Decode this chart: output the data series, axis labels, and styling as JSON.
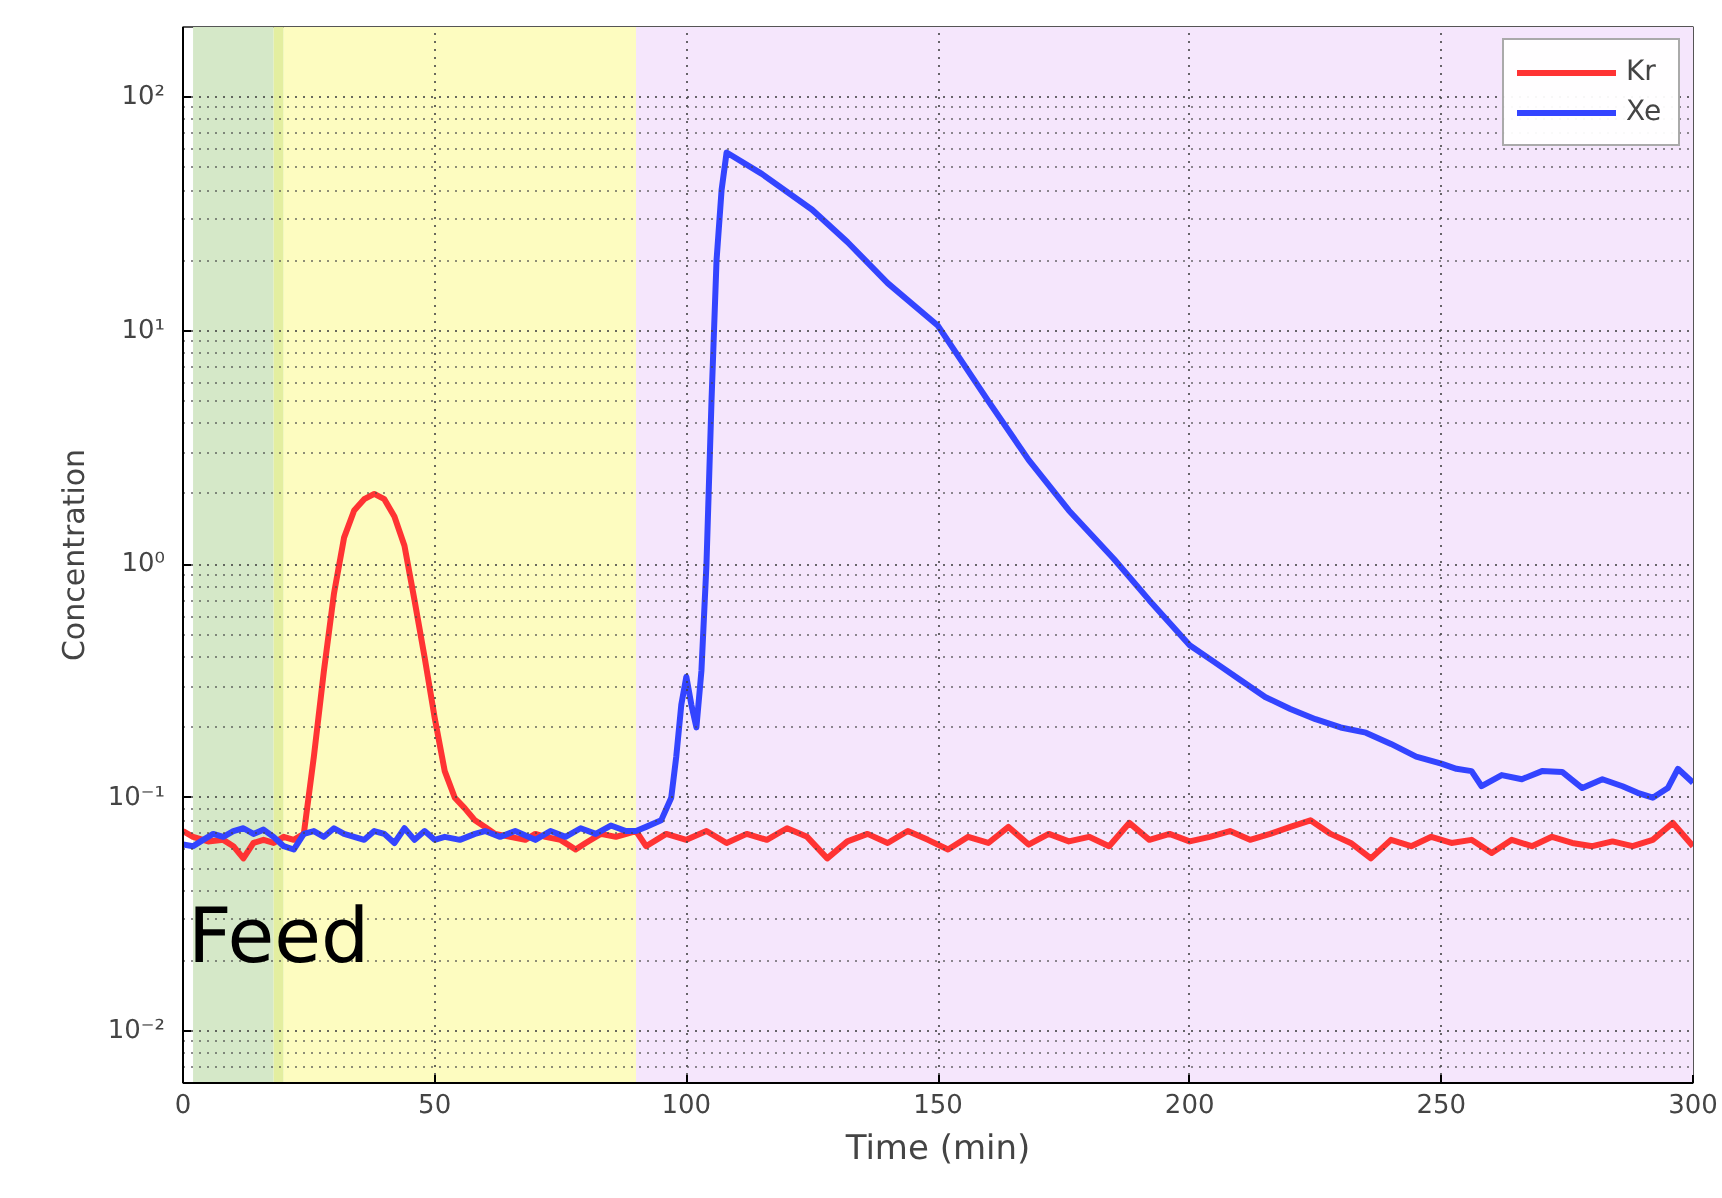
{
  "chart_data": {
    "type": "line",
    "xlabel": "Time (min)",
    "ylabel": "Concentration",
    "log": "y",
    "xlim": [
      0,
      300
    ],
    "xticks": [
      0,
      50,
      100,
      150,
      200,
      250,
      300
    ],
    "ylim": [
      0.006,
      200
    ],
    "yticks": [
      {
        "value": 0.01,
        "label": "10⁻²"
      },
      {
        "value": 0.1,
        "label": "10⁻¹"
      },
      {
        "value": 1,
        "label": "10⁰"
      },
      {
        "value": 10,
        "label": "10¹"
      },
      {
        "value": 100,
        "label": "10²"
      }
    ],
    "grid": true,
    "legend": "top right",
    "marker": "none",
    "line_style": "solid",
    "bands": [
      {
        "axis": "x",
        "from": 2,
        "to": 18,
        "label": null,
        "color": "#d5e8c8"
      },
      {
        "axis": "x",
        "from": 18,
        "to": 20,
        "label": null,
        "color": "#e3eea0"
      },
      {
        "axis": "x",
        "from": 20,
        "to": 90,
        "label": null,
        "color": "#fdfcc0"
      },
      {
        "axis": "x",
        "from": 90,
        "to": 300,
        "label": null,
        "color": "#f5e6fc"
      }
    ],
    "annotations": [
      "Feed"
    ],
    "series": [
      {
        "name": "Kr",
        "color": "#ff3333",
        "x": [
          0,
          2,
          5,
          8,
          10,
          12,
          14,
          16,
          18,
          20,
          22,
          24,
          26,
          28,
          30,
          32,
          34,
          36,
          38,
          40,
          42,
          44,
          46,
          48,
          50,
          52,
          54,
          56,
          58,
          60,
          62,
          65,
          68,
          70,
          72,
          75,
          78,
          80,
          83,
          86,
          90,
          92,
          96,
          100,
          104,
          108,
          112,
          116,
          120,
          124,
          128,
          132,
          136,
          140,
          144,
          148,
          152,
          156,
          160,
          164,
          168,
          172,
          176,
          180,
          184,
          188,
          192,
          196,
          200,
          204,
          208,
          212,
          216,
          220,
          224,
          228,
          232,
          236,
          240,
          244,
          248,
          252,
          256,
          260,
          264,
          268,
          272,
          276,
          280,
          284,
          288,
          292,
          296,
          300
        ],
        "values": [
          0.072,
          0.068,
          0.065,
          0.066,
          0.062,
          0.055,
          0.064,
          0.066,
          0.064,
          0.068,
          0.066,
          0.07,
          0.15,
          0.35,
          0.75,
          1.3,
          1.7,
          1.9,
          2.0,
          1.9,
          1.6,
          1.2,
          0.7,
          0.4,
          0.22,
          0.13,
          0.1,
          0.09,
          0.08,
          0.075,
          0.07,
          0.068,
          0.066,
          0.07,
          0.068,
          0.066,
          0.06,
          0.064,
          0.07,
          0.068,
          0.072,
          0.062,
          0.07,
          0.066,
          0.072,
          0.064,
          0.07,
          0.066,
          0.074,
          0.068,
          0.055,
          0.065,
          0.07,
          0.064,
          0.072,
          0.066,
          0.06,
          0.068,
          0.064,
          0.075,
          0.063,
          0.07,
          0.065,
          0.068,
          0.062,
          0.078,
          0.066,
          0.07,
          0.065,
          0.068,
          0.072,
          0.066,
          0.07,
          0.075,
          0.08,
          0.07,
          0.064,
          0.055,
          0.066,
          0.062,
          0.068,
          0.064,
          0.066,
          0.058,
          0.066,
          0.062,
          0.068,
          0.064,
          0.062,
          0.065,
          0.062,
          0.066,
          0.078,
          0.062
        ]
      },
      {
        "name": "Xe",
        "color": "#3344ff",
        "x": [
          0,
          2,
          4,
          6,
          8,
          10,
          12,
          14,
          16,
          18,
          20,
          22,
          24,
          26,
          28,
          30,
          32,
          34,
          36,
          38,
          40,
          42,
          44,
          46,
          48,
          50,
          52,
          55,
          58,
          60,
          63,
          66,
          70,
          73,
          76,
          79,
          82,
          85,
          88,
          90,
          92,
          95,
          97,
          98,
          99,
          100,
          101,
          102,
          103,
          104,
          105,
          106,
          107,
          108,
          115,
          125,
          132,
          140,
          150,
          160,
          168,
          176,
          185,
          192,
          200,
          205,
          210,
          215,
          220,
          225,
          230,
          235,
          240,
          245,
          250,
          253,
          256,
          258,
          262,
          266,
          270,
          274,
          278,
          282,
          286,
          289,
          292,
          295,
          297,
          300
        ],
        "values": [
          0.063,
          0.062,
          0.066,
          0.07,
          0.068,
          0.072,
          0.074,
          0.07,
          0.073,
          0.068,
          0.062,
          0.06,
          0.07,
          0.072,
          0.068,
          0.074,
          0.07,
          0.068,
          0.066,
          0.072,
          0.07,
          0.064,
          0.074,
          0.066,
          0.072,
          0.066,
          0.068,
          0.066,
          0.07,
          0.072,
          0.068,
          0.072,
          0.066,
          0.072,
          0.068,
          0.074,
          0.07,
          0.076,
          0.072,
          0.072,
          0.075,
          0.08,
          0.1,
          0.15,
          0.25,
          0.33,
          0.25,
          0.2,
          0.35,
          1,
          5,
          20,
          40,
          58,
          47,
          33,
          24,
          16,
          10.5,
          5,
          2.8,
          1.7,
          1.05,
          0.7,
          0.45,
          0.38,
          0.32,
          0.27,
          0.24,
          0.217,
          0.2,
          0.19,
          0.17,
          0.15,
          0.14,
          0.133,
          0.13,
          0.112,
          0.125,
          0.12,
          0.13,
          0.129,
          0.11,
          0.12,
          0.112,
          0.105,
          0.1,
          0.11,
          0.133,
          0.116
        ]
      }
    ]
  }
}
